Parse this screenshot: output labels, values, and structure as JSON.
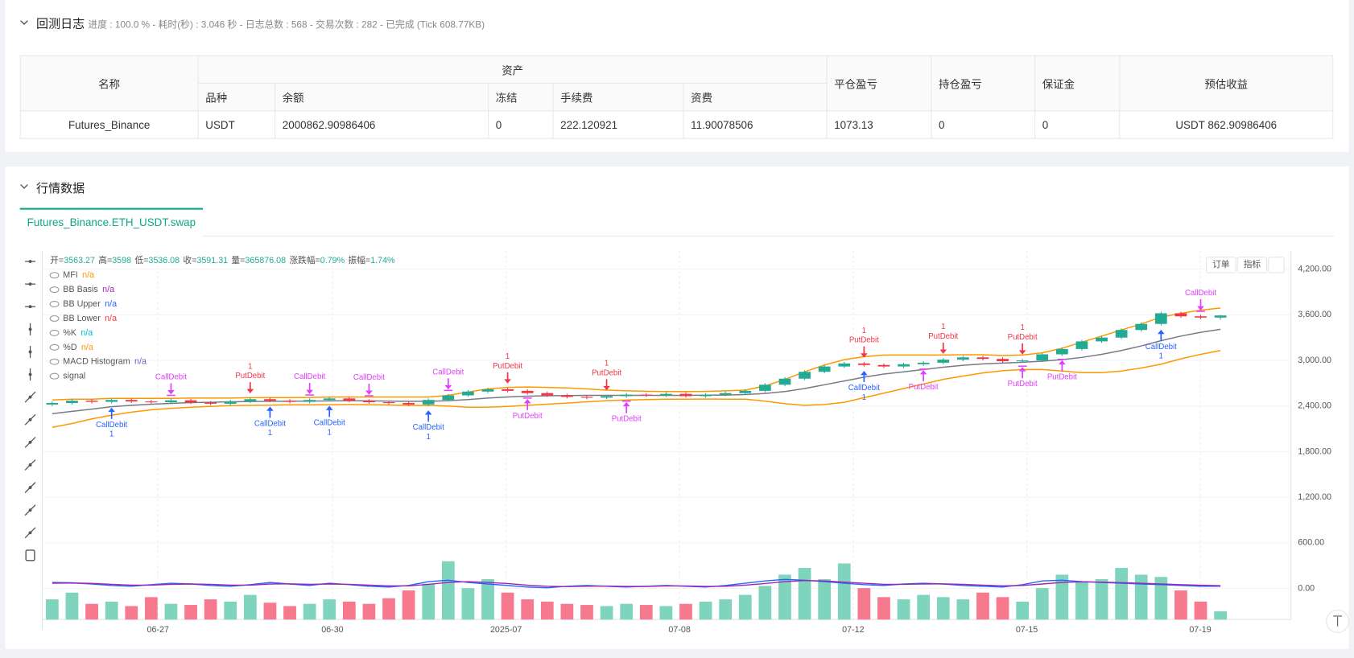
{
  "log_panel": {
    "title": "回测日志",
    "status": "进度 : 100.0 % - 耗时(秒) : 3.046 秒 - 日志总数 : 568 - 交易次数 : 282 - 已完成 (Tick 608.77KB)"
  },
  "table": {
    "header": {
      "name": "名称",
      "assets": "资产",
      "columns": [
        "品种",
        "余额",
        "冻结",
        "手续费",
        "资费"
      ],
      "close_pnl": "平仓盈亏",
      "position_pnl": "持仓盈亏",
      "margin": "保证金",
      "estimate": "预估收益"
    },
    "rows": [
      [
        "Futures_Binance",
        "USDT",
        "2000862.90986406",
        "0",
        "222.120921",
        "11.90078506",
        "1073.13",
        "0",
        "0",
        "USDT 862.90986406"
      ]
    ]
  },
  "market_panel": {
    "title": "行情数据",
    "tab": "Futures_Binance.ETH_USDT.swap",
    "buttons": [
      "订单",
      "指标"
    ]
  },
  "chart_data": {
    "type": "candlestick",
    "info": [
      {
        "label": "开=",
        "value": "3563.27"
      },
      {
        "label": "高=",
        "value": "3598"
      },
      {
        "label": "低=",
        "value": "3536.08"
      },
      {
        "label": "收=",
        "value": "3591.31"
      },
      {
        "label": "量=",
        "value": "365876.08"
      },
      {
        "label": "涨跌幅=",
        "value": "0.79%"
      },
      {
        "label": "振幅=",
        "value": "1.74%"
      }
    ],
    "legend": [
      {
        "name": "MFI",
        "value": "n/a",
        "color": "#ff9800"
      },
      {
        "name": "BB Basis",
        "value": "n/a",
        "color": "#9c27b0"
      },
      {
        "name": "BB Upper",
        "value": "n/a",
        "color": "#2962ff"
      },
      {
        "name": "BB Lower",
        "value": "n/a",
        "color": "#f23645"
      },
      {
        "name": "%K",
        "value": "n/a",
        "color": "#00bcd4"
      },
      {
        "name": "%D",
        "value": "n/a",
        "color": "#ff9800"
      },
      {
        "name": "MACD Histogram",
        "value": "n/a",
        "color": "#7e57c2"
      },
      {
        "name": "signal"
      }
    ],
    "open": [
      2420,
      2440,
      2470,
      2455,
      2480,
      2460,
      2450,
      2475,
      2445,
      2430,
      2460,
      2490,
      2470,
      2455,
      2480,
      2500,
      2470,
      2450,
      2440,
      2420,
      2480,
      2540,
      2590,
      2620,
      2600,
      2570,
      2540,
      2520,
      2510,
      2530,
      2550,
      2540,
      2560,
      2530,
      2550,
      2570,
      2600,
      2680,
      2760,
      2850,
      2920,
      2960,
      2940,
      2920,
      2950,
      2970,
      3010,
      3040,
      3020,
      2990,
      3000,
      3080,
      3150,
      3250,
      3300,
      3400,
      3480,
      3620,
      3580,
      3563.27
    ],
    "high": [
      2460,
      2490,
      2490,
      2500,
      2500,
      2480,
      2495,
      2495,
      2465,
      2480,
      2510,
      2510,
      2490,
      2500,
      2520,
      2520,
      2490,
      2470,
      2460,
      2500,
      2560,
      2610,
      2640,
      2640,
      2620,
      2590,
      2560,
      2540,
      2550,
      2570,
      2570,
      2580,
      2580,
      2570,
      2590,
      2620,
      2700,
      2780,
      2870,
      2940,
      2980,
      2980,
      2960,
      2970,
      2990,
      3030,
      3060,
      3060,
      3040,
      3020,
      3100,
      3170,
      3270,
      3320,
      3420,
      3500,
      3640,
      3640,
      3600,
      3598
    ],
    "low": [
      2400,
      2420,
      2435,
      2435,
      2440,
      2430,
      2430,
      2425,
      2410,
      2410,
      2440,
      2450,
      2435,
      2435,
      2460,
      2450,
      2430,
      2420,
      2400,
      2400,
      2460,
      2520,
      2570,
      2580,
      2550,
      2520,
      2500,
      2490,
      2490,
      2510,
      2520,
      2520,
      2510,
      2510,
      2530,
      2550,
      2580,
      2660,
      2740,
      2830,
      2900,
      2920,
      2900,
      2900,
      2930,
      2950,
      2990,
      3000,
      2970,
      2970,
      2980,
      3060,
      3130,
      3230,
      3280,
      3380,
      3460,
      3560,
      3543,
      3536.08
    ],
    "close": [
      2440,
      2470,
      2455,
      2480,
      2460,
      2450,
      2475,
      2445,
      2430,
      2460,
      2490,
      2470,
      2455,
      2480,
      2500,
      2470,
      2450,
      2440,
      2420,
      2480,
      2540,
      2590,
      2620,
      2600,
      2570,
      2540,
      2520,
      2510,
      2530,
      2550,
      2540,
      2560,
      2530,
      2550,
      2570,
      2600,
      2680,
      2760,
      2850,
      2920,
      2960,
      2940,
      2920,
      2950,
      2970,
      3010,
      3040,
      3020,
      2990,
      3000,
      3080,
      3150,
      3250,
      3300,
      3400,
      3480,
      3620,
      3580,
      3563.27,
      3591.31
    ],
    "up_color": "#22ab94",
    "down_color": "#f23645",
    "volume": [
      900000,
      1200000,
      700000,
      800000,
      600000,
      1000000,
      700000,
      650000,
      900000,
      800000,
      1100000,
      750000,
      600000,
      700000,
      900000,
      800000,
      700000,
      950000,
      1300000,
      1600000,
      2600000,
      1400000,
      1800000,
      1200000,
      900000,
      800000,
      700000,
      650000,
      600000,
      700000,
      650000,
      600000,
      700000,
      800000,
      900000,
      1100000,
      1500000,
      2000000,
      2300000,
      1800000,
      2500000,
      1400000,
      1000000,
      900000,
      1100000,
      1000000,
      900000,
      1200000,
      1000000,
      800000,
      1400000,
      2000000,
      1700000,
      1800000,
      2300000,
      2000000,
      1900000,
      1300000,
      800000,
      365876.08
    ],
    "volume_lim": [
      0,
      3000000
    ],
    "volume_up_color": "#7fd4bd",
    "volume_down_color": "#f7798d",
    "bands": [
      {
        "color": "#ff9800",
        "values": [
          2480,
          2490,
          2490,
          2500,
          2500,
          2500,
          2500,
          2505,
          2505,
          2505,
          2510,
          2512,
          2511,
          2513,
          2518,
          2520,
          2518,
          2517,
          2517,
          2517,
          2540,
          2585,
          2625,
          2645,
          2650,
          2645,
          2638,
          2625,
          2610,
          2600,
          2595,
          2590,
          2590,
          2592,
          2600,
          2610,
          2665,
          2750,
          2850,
          2940,
          3010,
          3050,
          3070,
          3070,
          3070,
          3070,
          3075,
          3075,
          3065,
          3070,
          3100,
          3160,
          3240,
          3320,
          3400,
          3480,
          3570,
          3620,
          3660,
          3690
        ]
      },
      {
        "color": "#787b86",
        "values": [
          2300,
          2330,
          2360,
          2390,
          2410,
          2425,
          2435,
          2445,
          2450,
          2455,
          2460,
          2462,
          2463,
          2465,
          2468,
          2470,
          2468,
          2465,
          2462,
          2462,
          2470,
          2485,
          2505,
          2520,
          2530,
          2535,
          2538,
          2540,
          2540,
          2540,
          2540,
          2540,
          2540,
          2542,
          2545,
          2550,
          2565,
          2590,
          2630,
          2680,
          2730,
          2780,
          2820,
          2850,
          2880,
          2910,
          2935,
          2955,
          2965,
          2975,
          2990,
          3010,
          3040,
          3080,
          3130,
          3190,
          3260,
          3320,
          3370,
          3410
        ]
      },
      {
        "color": "#ff9800",
        "values": [
          2120,
          2170,
          2230,
          2280,
          2320,
          2350,
          2370,
          2385,
          2395,
          2405,
          2410,
          2412,
          2415,
          2417,
          2418,
          2420,
          2418,
          2413,
          2407,
          2407,
          2400,
          2385,
          2385,
          2395,
          2410,
          2425,
          2438,
          2455,
          2470,
          2480,
          2485,
          2490,
          2490,
          2492,
          2490,
          2490,
          2465,
          2430,
          2410,
          2420,
          2450,
          2510,
          2570,
          2630,
          2690,
          2750,
          2795,
          2835,
          2865,
          2880,
          2880,
          2860,
          2840,
          2840,
          2860,
          2900,
          2950,
          3020,
          3080,
          3130
        ]
      }
    ],
    "indicator_lines": [
      {
        "color": "#2962ff",
        "values": [
          80,
          75,
          60,
          40,
          30,
          50,
          70,
          60,
          40,
          30,
          50,
          80,
          60,
          40,
          70,
          50,
          30,
          20,
          40,
          90,
          110,
          80,
          60,
          40,
          20,
          10,
          30,
          40,
          30,
          20,
          30,
          40,
          30,
          20,
          40,
          70,
          100,
          120,
          110,
          90,
          70,
          50,
          40,
          60,
          70,
          60,
          40,
          30,
          20,
          50,
          100,
          110,
          90,
          80,
          70,
          60,
          50,
          40,
          30,
          30
        ]
      },
      {
        "color": "#9c27b0",
        "values": [
          70,
          72,
          68,
          55,
          45,
          45,
          55,
          60,
          55,
          45,
          45,
          60,
          62,
          55,
          60,
          55,
          45,
          35,
          35,
          55,
          80,
          90,
          80,
          65,
          45,
          30,
          25,
          30,
          32,
          28,
          28,
          33,
          33,
          28,
          30,
          45,
          65,
          90,
          105,
          100,
          85,
          70,
          55,
          55,
          60,
          62,
          55,
          45,
          35,
          40,
          60,
          80,
          88,
          85,
          78,
          70,
          60,
          50,
          42,
          38
        ]
      }
    ],
    "signals": [
      {
        "index": 3,
        "label": "CallDebit",
        "count": 1,
        "position": "below",
        "color": "#2962ff"
      },
      {
        "index": 6,
        "label": "CallDebit",
        "position": "above",
        "color": "#e040fb"
      },
      {
        "index": 10,
        "label": "PutDebit",
        "count": 1,
        "position": "above",
        "color": "#f23645"
      },
      {
        "index": 11,
        "label": "CallDebit",
        "count": 1,
        "position": "below",
        "color": "#2962ff"
      },
      {
        "index": 13,
        "label": "CallDebit",
        "position": "above",
        "color": "#e040fb"
      },
      {
        "index": 14,
        "label": "CallDebit",
        "count": 1,
        "position": "below",
        "color": "#2962ff"
      },
      {
        "index": 16,
        "label": "CallDebit",
        "position": "above",
        "color": "#e040fb"
      },
      {
        "index": 19,
        "label": "CallDebit",
        "count": 1,
        "position": "below",
        "color": "#2962ff"
      },
      {
        "index": 20,
        "label": "CallDebit",
        "position": "above",
        "color": "#e040fb"
      },
      {
        "index": 23,
        "label": "PutDebit",
        "count": 1,
        "position": "above",
        "color": "#f23645"
      },
      {
        "index": 24,
        "label": "PutDebit",
        "position": "below",
        "color": "#e040fb"
      },
      {
        "index": 28,
        "label": "PutDebit",
        "count": 1,
        "position": "above",
        "color": "#f23645"
      },
      {
        "index": 29,
        "label": "PutDebit",
        "position": "below",
        "color": "#e040fb"
      },
      {
        "index": 41,
        "label": "PutDebit",
        "count": 1,
        "position": "above",
        "color": "#f23645"
      },
      {
        "index": 41,
        "label": "CallDebit",
        "count": 1,
        "position": "below",
        "color": "#2962ff"
      },
      {
        "index": 44,
        "label": "PutDebit",
        "position": "below",
        "color": "#e040fb"
      },
      {
        "index": 45,
        "label": "PutDebit",
        "count": 1,
        "position": "above",
        "color": "#f23645"
      },
      {
        "index": 49,
        "label": "PutDebit",
        "count": 1,
        "position": "above",
        "color": "#f23645"
      },
      {
        "index": 49,
        "label": "PutDebit",
        "position": "below",
        "color": "#e040fb"
      },
      {
        "index": 51,
        "label": "PutDebit",
        "position": "below",
        "color": "#e040fb"
      },
      {
        "index": 56,
        "label": "CallDebit",
        "count": 1,
        "position": "below",
        "color": "#2962ff"
      },
      {
        "index": 58,
        "label": "CallDebit",
        "position": "above",
        "color": "#e040fb"
      }
    ],
    "xlim": [
      -0.5,
      62.56
    ],
    "xticks": [
      {
        "value": 5.34,
        "label": "06-27"
      },
      {
        "value": 14.15,
        "label": "06-30"
      },
      {
        "value": 22.92,
        "label": "2025-07"
      },
      {
        "value": 31.68,
        "label": "07-08"
      },
      {
        "value": 40.45,
        "label": "07-12"
      },
      {
        "value": 49.22,
        "label": "07-15"
      },
      {
        "value": 57.98,
        "label": "07-19"
      }
    ],
    "ylim": [
      -408,
      4449
    ],
    "yticks": [
      {
        "value": 0,
        "label": "0.00"
      },
      {
        "value": 600,
        "label": "600.00"
      },
      {
        "value": 1200,
        "label": "1,200.00"
      },
      {
        "value": 1800,
        "label": "1,800.00"
      },
      {
        "value": 2400,
        "label": "2,400.00"
      },
      {
        "value": 3000,
        "label": "3,000.00"
      },
      {
        "value": 3600,
        "label": "3,600.00"
      },
      {
        "value": 4200,
        "label": "4,200.00"
      }
    ],
    "grid": true
  }
}
